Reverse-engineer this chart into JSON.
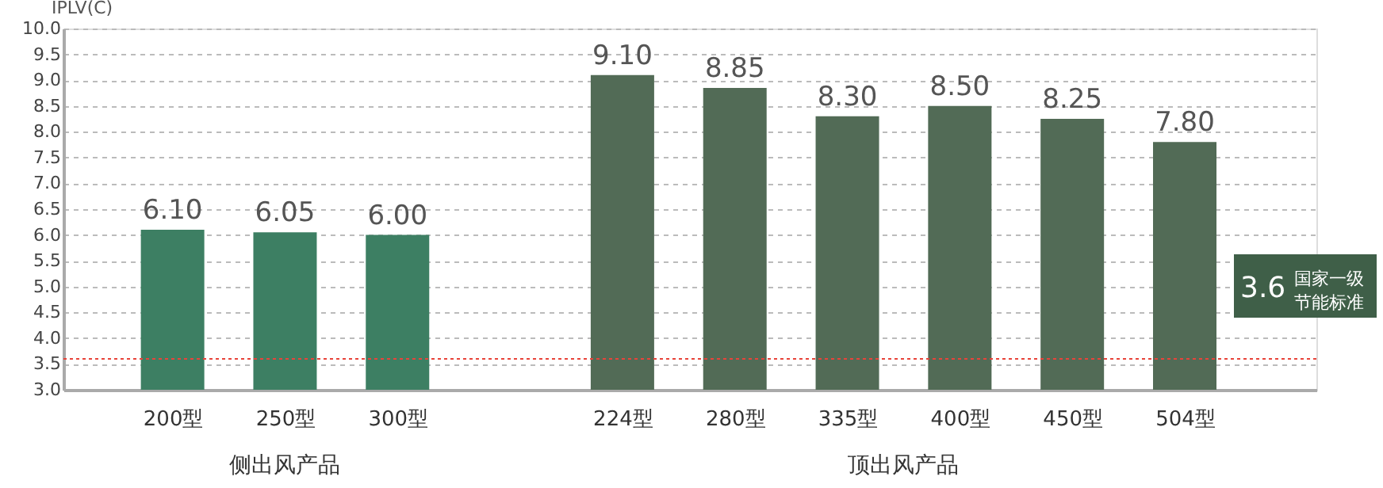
{
  "chart_data": {
    "type": "bar",
    "ylabel": "IPLV(C)",
    "categories": [
      "200型",
      "250型",
      "300型",
      null,
      "224型",
      "280型",
      "335型",
      "400型",
      "450型",
      "504型"
    ],
    "values": [
      6.1,
      6.05,
      6.0,
      null,
      9.1,
      8.85,
      8.3,
      8.5,
      8.25,
      7.8
    ],
    "value_labels": [
      "6.10",
      "6.05",
      "6.00",
      null,
      "9.10",
      "8.85",
      "8.30",
      "8.50",
      "8.25",
      "7.80"
    ],
    "colors": [
      "#3d7f63",
      "#3d7f63",
      "#3d7f63",
      null,
      "#526b56",
      "#526b56",
      "#526b56",
      "#526b56",
      "#526b56",
      "#526b56"
    ],
    "ylim": [
      3.0,
      10.0
    ],
    "yticks": [
      {
        "value": 3.0,
        "label": "3.0"
      },
      {
        "value": 3.5,
        "label": "3.5"
      },
      {
        "value": 4.0,
        "label": "4.0"
      },
      {
        "value": 4.5,
        "label": "4.5"
      },
      {
        "value": 5.0,
        "label": "5.0"
      },
      {
        "value": 5.5,
        "label": "5.5"
      },
      {
        "value": 6.0,
        "label": "6.0"
      },
      {
        "value": 6.5,
        "label": "6.5"
      },
      {
        "value": 7.0,
        "label": "7.0"
      },
      {
        "value": 7.5,
        "label": "7.5"
      },
      {
        "value": 8.0,
        "label": "8.0"
      },
      {
        "value": 8.5,
        "label": "8.5"
      },
      {
        "value": 9.0,
        "label": "9.0"
      },
      {
        "value": 9.5,
        "label": "9.5"
      },
      {
        "value": 10.0,
        "label": "10.0"
      }
    ],
    "grid": "y",
    "ref_lines": [
      {
        "axis": "y",
        "value": 3.6,
        "label": "3.6 国家一级节能标准",
        "color": "#e8433a",
        "line_style": "dotted"
      }
    ],
    "annotations": [
      "侧出风产品",
      "顶出风产品"
    ]
  }
}
